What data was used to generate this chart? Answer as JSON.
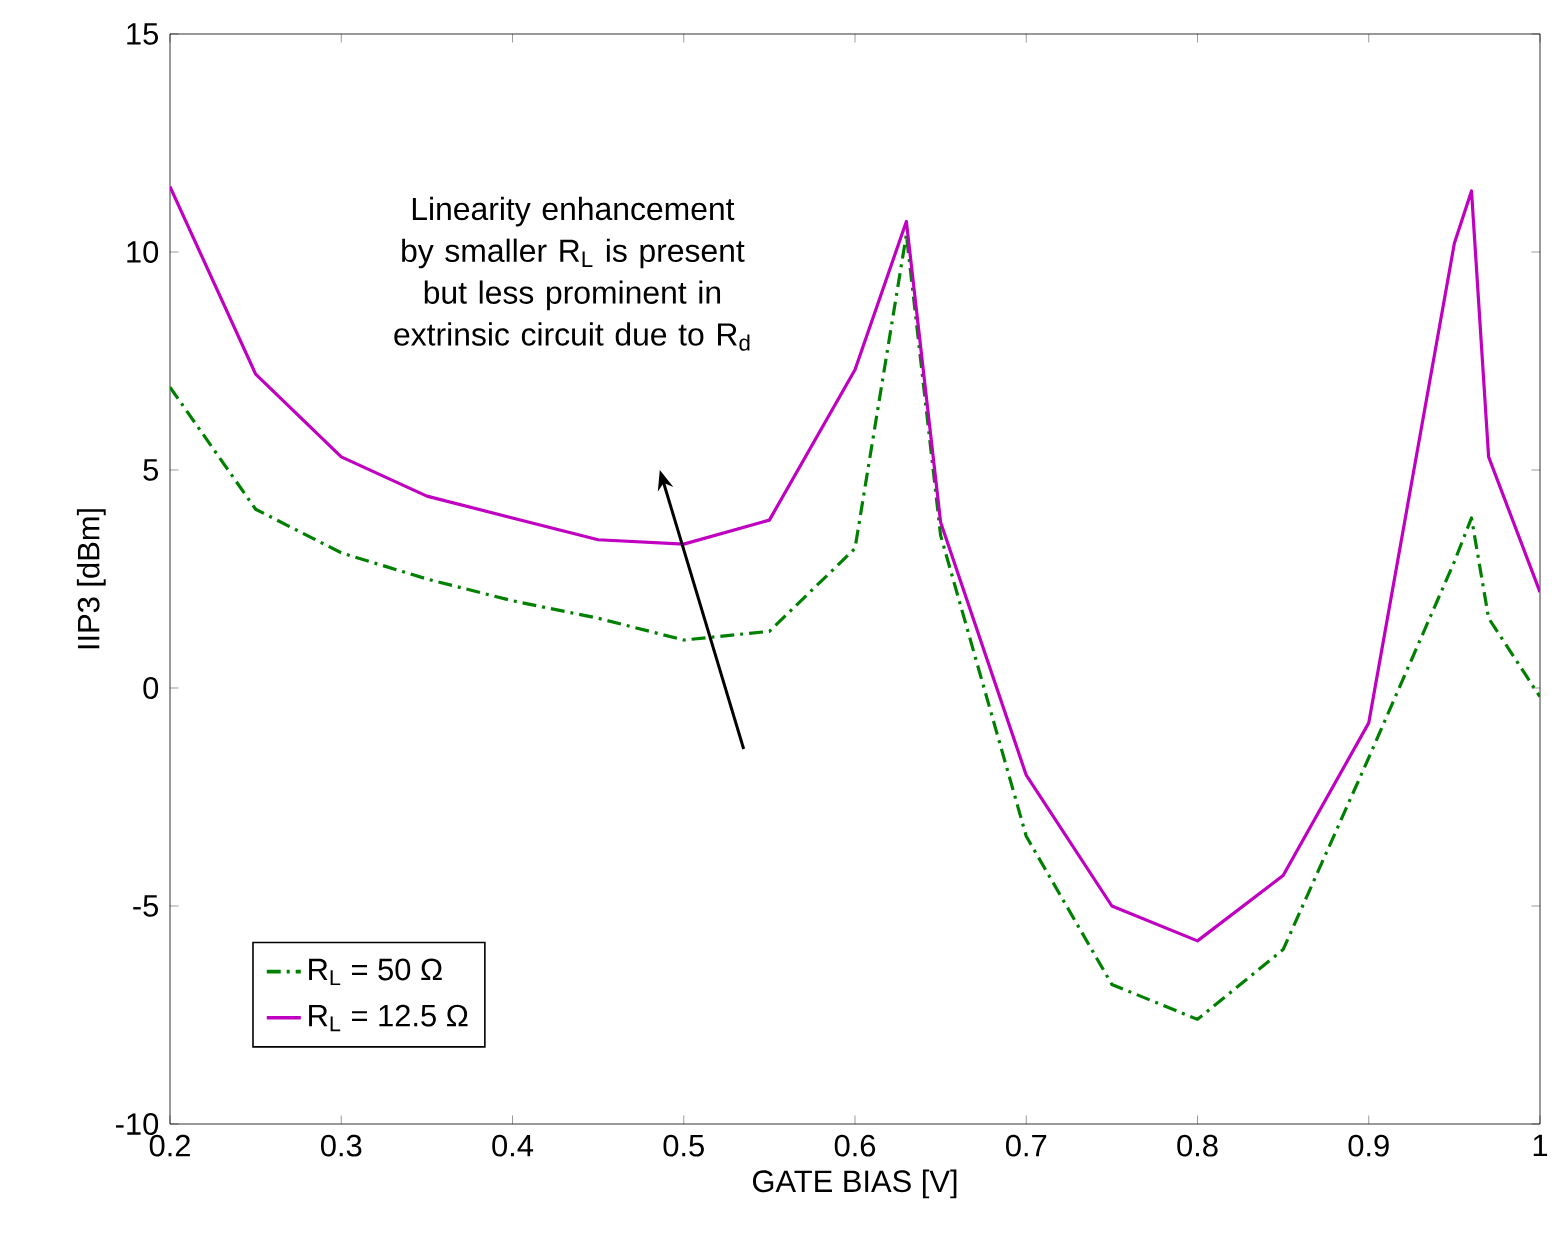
{
  "chart_data": {
    "type": "line",
    "xlabel": "GATE BIAS [V]",
    "ylabel": "IIP3 [dBm]",
    "xlim": [
      0.2,
      1
    ],
    "ylim": [
      -10,
      15
    ],
    "xticks": [
      0.2,
      0.3,
      0.4,
      0.5,
      0.6,
      0.7,
      0.8,
      0.9,
      1
    ],
    "yticks": [
      -10,
      -5,
      0,
      5,
      10,
      15
    ],
    "legend": "bottom left",
    "series": [
      {
        "name": "R$_{L}$ = 50 Ω",
        "color": "#008000",
        "line_style": "dashed",
        "x": [
          0.2,
          0.25,
          0.3,
          0.35,
          0.4,
          0.45,
          0.5,
          0.55,
          0.6,
          0.63,
          0.65,
          0.7,
          0.75,
          0.8,
          0.85,
          0.9,
          0.95,
          0.96,
          0.97,
          1.0
        ],
        "values": [
          6.9,
          4.1,
          3.1,
          2.5,
          2.0,
          1.6,
          1.1,
          1.3,
          3.2,
          10.4,
          3.5,
          -3.4,
          -6.8,
          -7.6,
          -6.0,
          -1.6,
          2.9,
          3.9,
          1.6,
          -0.2
        ]
      },
      {
        "name": "R$_{L}$ = 12.5 Ω",
        "color": "#c000c0",
        "line_style": "solid",
        "x": [
          0.2,
          0.25,
          0.3,
          0.35,
          0.4,
          0.45,
          0.5,
          0.55,
          0.6,
          0.63,
          0.65,
          0.7,
          0.75,
          0.8,
          0.85,
          0.9,
          0.95,
          0.96,
          0.97,
          1.0
        ],
        "values": [
          11.5,
          7.2,
          5.3,
          4.4,
          3.9,
          3.4,
          3.3,
          3.85,
          7.3,
          10.7,
          3.8,
          -2.0,
          -5.0,
          -5.8,
          -4.3,
          -0.8,
          10.2,
          11.4,
          5.3,
          2.2
        ]
      }
    ],
    "annotations": [
      "Linearity enhancement by smaller R$_{L}$ is present but less prominent in extrinsic circuit due to R$_{d}$"
    ]
  }
}
